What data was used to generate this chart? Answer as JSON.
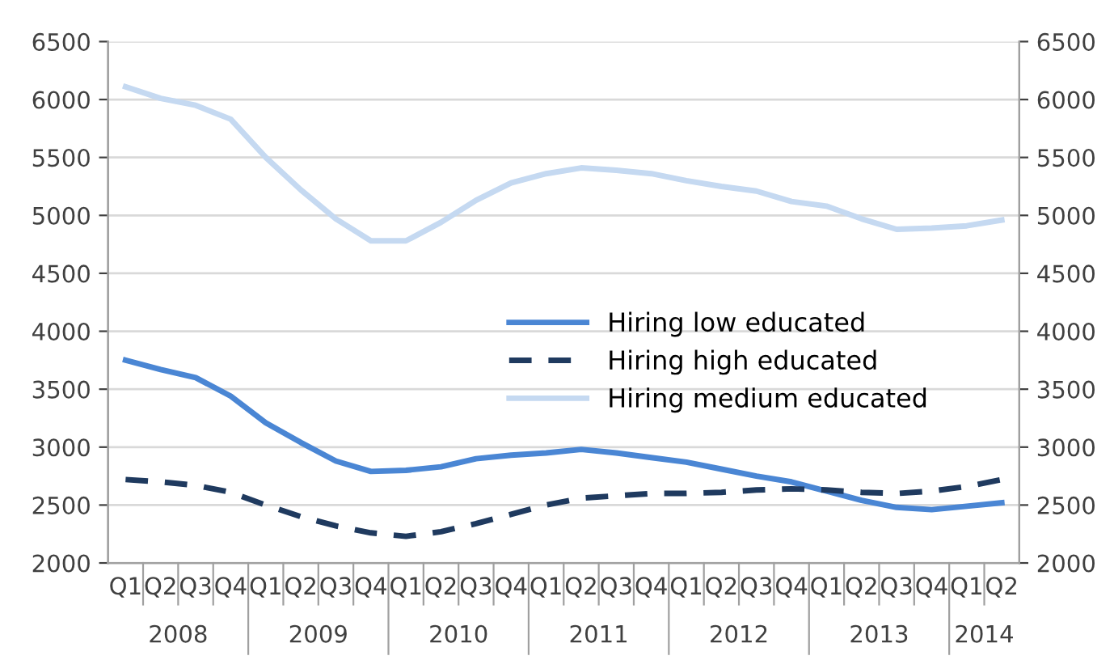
{
  "chart_data": {
    "type": "line",
    "categories": [
      "Q1",
      "Q2",
      "Q3",
      "Q4",
      "Q1",
      "Q2",
      "Q3",
      "Q4",
      "Q1",
      "Q2",
      "Q3",
      "Q4",
      "Q1",
      "Q2",
      "Q3",
      "Q4",
      "Q1",
      "Q2",
      "Q3",
      "Q4",
      "Q1",
      "Q2",
      "Q3",
      "Q4",
      "Q1",
      "Q2"
    ],
    "annotations": [
      "2008",
      "2009",
      "2010",
      "2011",
      "2012",
      "2013",
      "2014"
    ],
    "series": [
      {
        "name": "Hiring low educated",
        "color": "#4a86d4",
        "line_style": "solid",
        "values": [
          3750,
          3670,
          3600,
          3440,
          3210,
          3040,
          2880,
          2790,
          2800,
          2830,
          2900,
          2930,
          2950,
          2980,
          2950,
          2910,
          2870,
          2810,
          2750,
          2700,
          2620,
          2540,
          2480,
          2460,
          2490,
          2520
        ]
      },
      {
        "name": "Hiring high educated",
        "color": "#1f3a5f",
        "line_style": "dashed",
        "values": [
          2720,
          2700,
          2670,
          2610,
          2500,
          2400,
          2320,
          2260,
          2230,
          2270,
          2340,
          2420,
          2500,
          2560,
          2580,
          2600,
          2600,
          2610,
          2630,
          2640,
          2630,
          2610,
          2600,
          2620,
          2660,
          2720
        ]
      },
      {
        "name": "Hiring medium educated",
        "color": "#c5d9f1",
        "line_style": "solid",
        "values": [
          6110,
          6010,
          5950,
          5830,
          5500,
          5220,
          4970,
          4780,
          4780,
          4940,
          5130,
          5280,
          5360,
          5410,
          5390,
          5360,
          5300,
          5250,
          5210,
          5120,
          5080,
          4970,
          4880,
          4890,
          4910,
          4960
        ]
      }
    ],
    "ylim": [
      2000,
      6500
    ],
    "yticks": [
      2000,
      2500,
      3000,
      3500,
      4000,
      4500,
      5000,
      5500,
      6000,
      6500
    ],
    "y2lim": [
      2000,
      6500
    ],
    "y2ticks": [
      2000,
      2500,
      3000,
      3500,
      4000,
      4500,
      5000,
      5500,
      6000,
      6500
    ],
    "grid": "y",
    "legend": "center",
    "marker": "none"
  }
}
